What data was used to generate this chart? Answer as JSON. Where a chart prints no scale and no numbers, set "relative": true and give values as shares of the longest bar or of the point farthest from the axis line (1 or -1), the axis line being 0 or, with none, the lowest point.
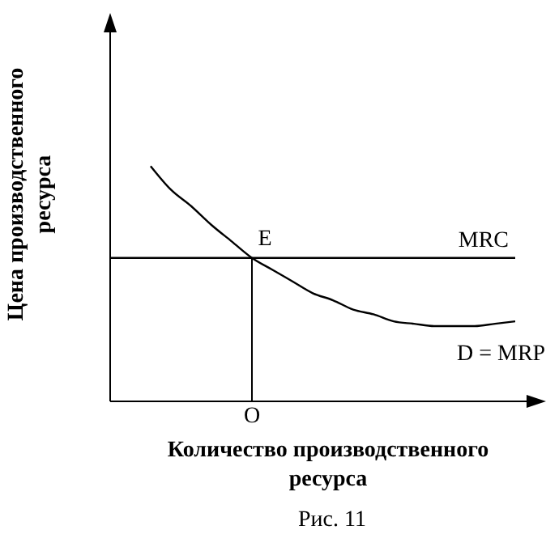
{
  "chart_data": {
    "type": "line",
    "relative": true,
    "xlabel": "Количество производственного ресурса",
    "ylabel": "Цена производственного ресурса",
    "categories": [
      null,
      null,
      null,
      null,
      null,
      null,
      null,
      null,
      null,
      null,
      null,
      null,
      null,
      null,
      null,
      null,
      null,
      null,
      null,
      null,
      null
    ],
    "series": [
      {
        "name": "D = MRP",
        "color": "#000000",
        "values": [
          null,
          null,
          1.0,
          0.9,
          0.83,
          0.75,
          0.68,
          0.61,
          0.56,
          0.51,
          0.46,
          0.43,
          0.39,
          0.37,
          0.34,
          0.33,
          0.32,
          0.32,
          0.32,
          0.33,
          0.34
        ]
      },
      {
        "name": "MRC",
        "color": "#000000",
        "values": [
          0.61,
          0.61,
          0.61,
          0.61,
          0.61,
          0.61,
          0.61,
          0.61,
          0.61,
          0.61,
          0.61,
          0.61,
          0.61,
          0.61,
          0.61,
          0.61,
          0.61,
          0.61,
          0.61,
          0.61,
          0.61
        ]
      }
    ],
    "annotations": [
      {
        "text": "E",
        "y": 0.61
      },
      "O",
      "Рис. 11"
    ],
    "legend": false,
    "grid": false,
    "marker": "none",
    "line_style": "solid"
  }
}
